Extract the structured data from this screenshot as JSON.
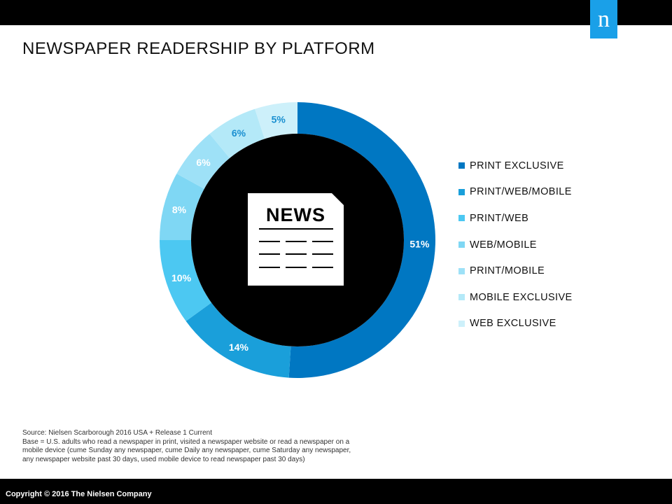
{
  "header": {
    "title": "NEWSPAPER READERSHIP BY PLATFORM",
    "logo_text": "n",
    "logo_color": "#1aa0e8"
  },
  "center_graphic": {
    "icon": "newspaper-icon",
    "headline": "NEWS"
  },
  "chart_data": {
    "type": "pie",
    "variant": "donut",
    "categories": [
      "PRINT EXCLUSIVE",
      "PRINT/WEB/MOBILE",
      "PRINT/WEB",
      "WEB/MOBILE",
      "PRINT/MOBILE",
      "MOBILE EXCLUSIVE",
      "WEB EXCLUSIVE"
    ],
    "values": [
      51,
      14,
      10,
      8,
      6,
      6,
      5
    ],
    "labels": [
      "51%",
      "14%",
      "10%",
      "8%",
      "6%",
      "6%",
      "5%"
    ],
    "colors": [
      "#0077c2",
      "#1a9fda",
      "#4cc8f2",
      "#7fd7f4",
      "#9ee1f7",
      "#b4e9f8",
      "#cdf0fa"
    ],
    "label_colors": [
      "#ffffff",
      "#ffffff",
      "#ffffff",
      "#ffffff",
      "#ffffff",
      "#1a8fd0",
      "#1a8fd0"
    ],
    "start": "12 o'clock, clockwise",
    "legend_position": "right"
  },
  "footnote": {
    "lines": [
      "Source: Nielsen Scarborough 2016 USA + Release 1 Current",
      "Base = U.S. adults who read a newspaper in print, visited a newspaper website or read a newspaper on a",
      "mobile device (cume Sunday any newspaper, cume Daily any newspaper, cume Saturday any newspaper,",
      "any newspaper website past 30 days, used mobile device to read newspaper past 30 days)"
    ]
  },
  "footer": {
    "copyright": "Copyright © 2016 The Nielsen Company"
  }
}
